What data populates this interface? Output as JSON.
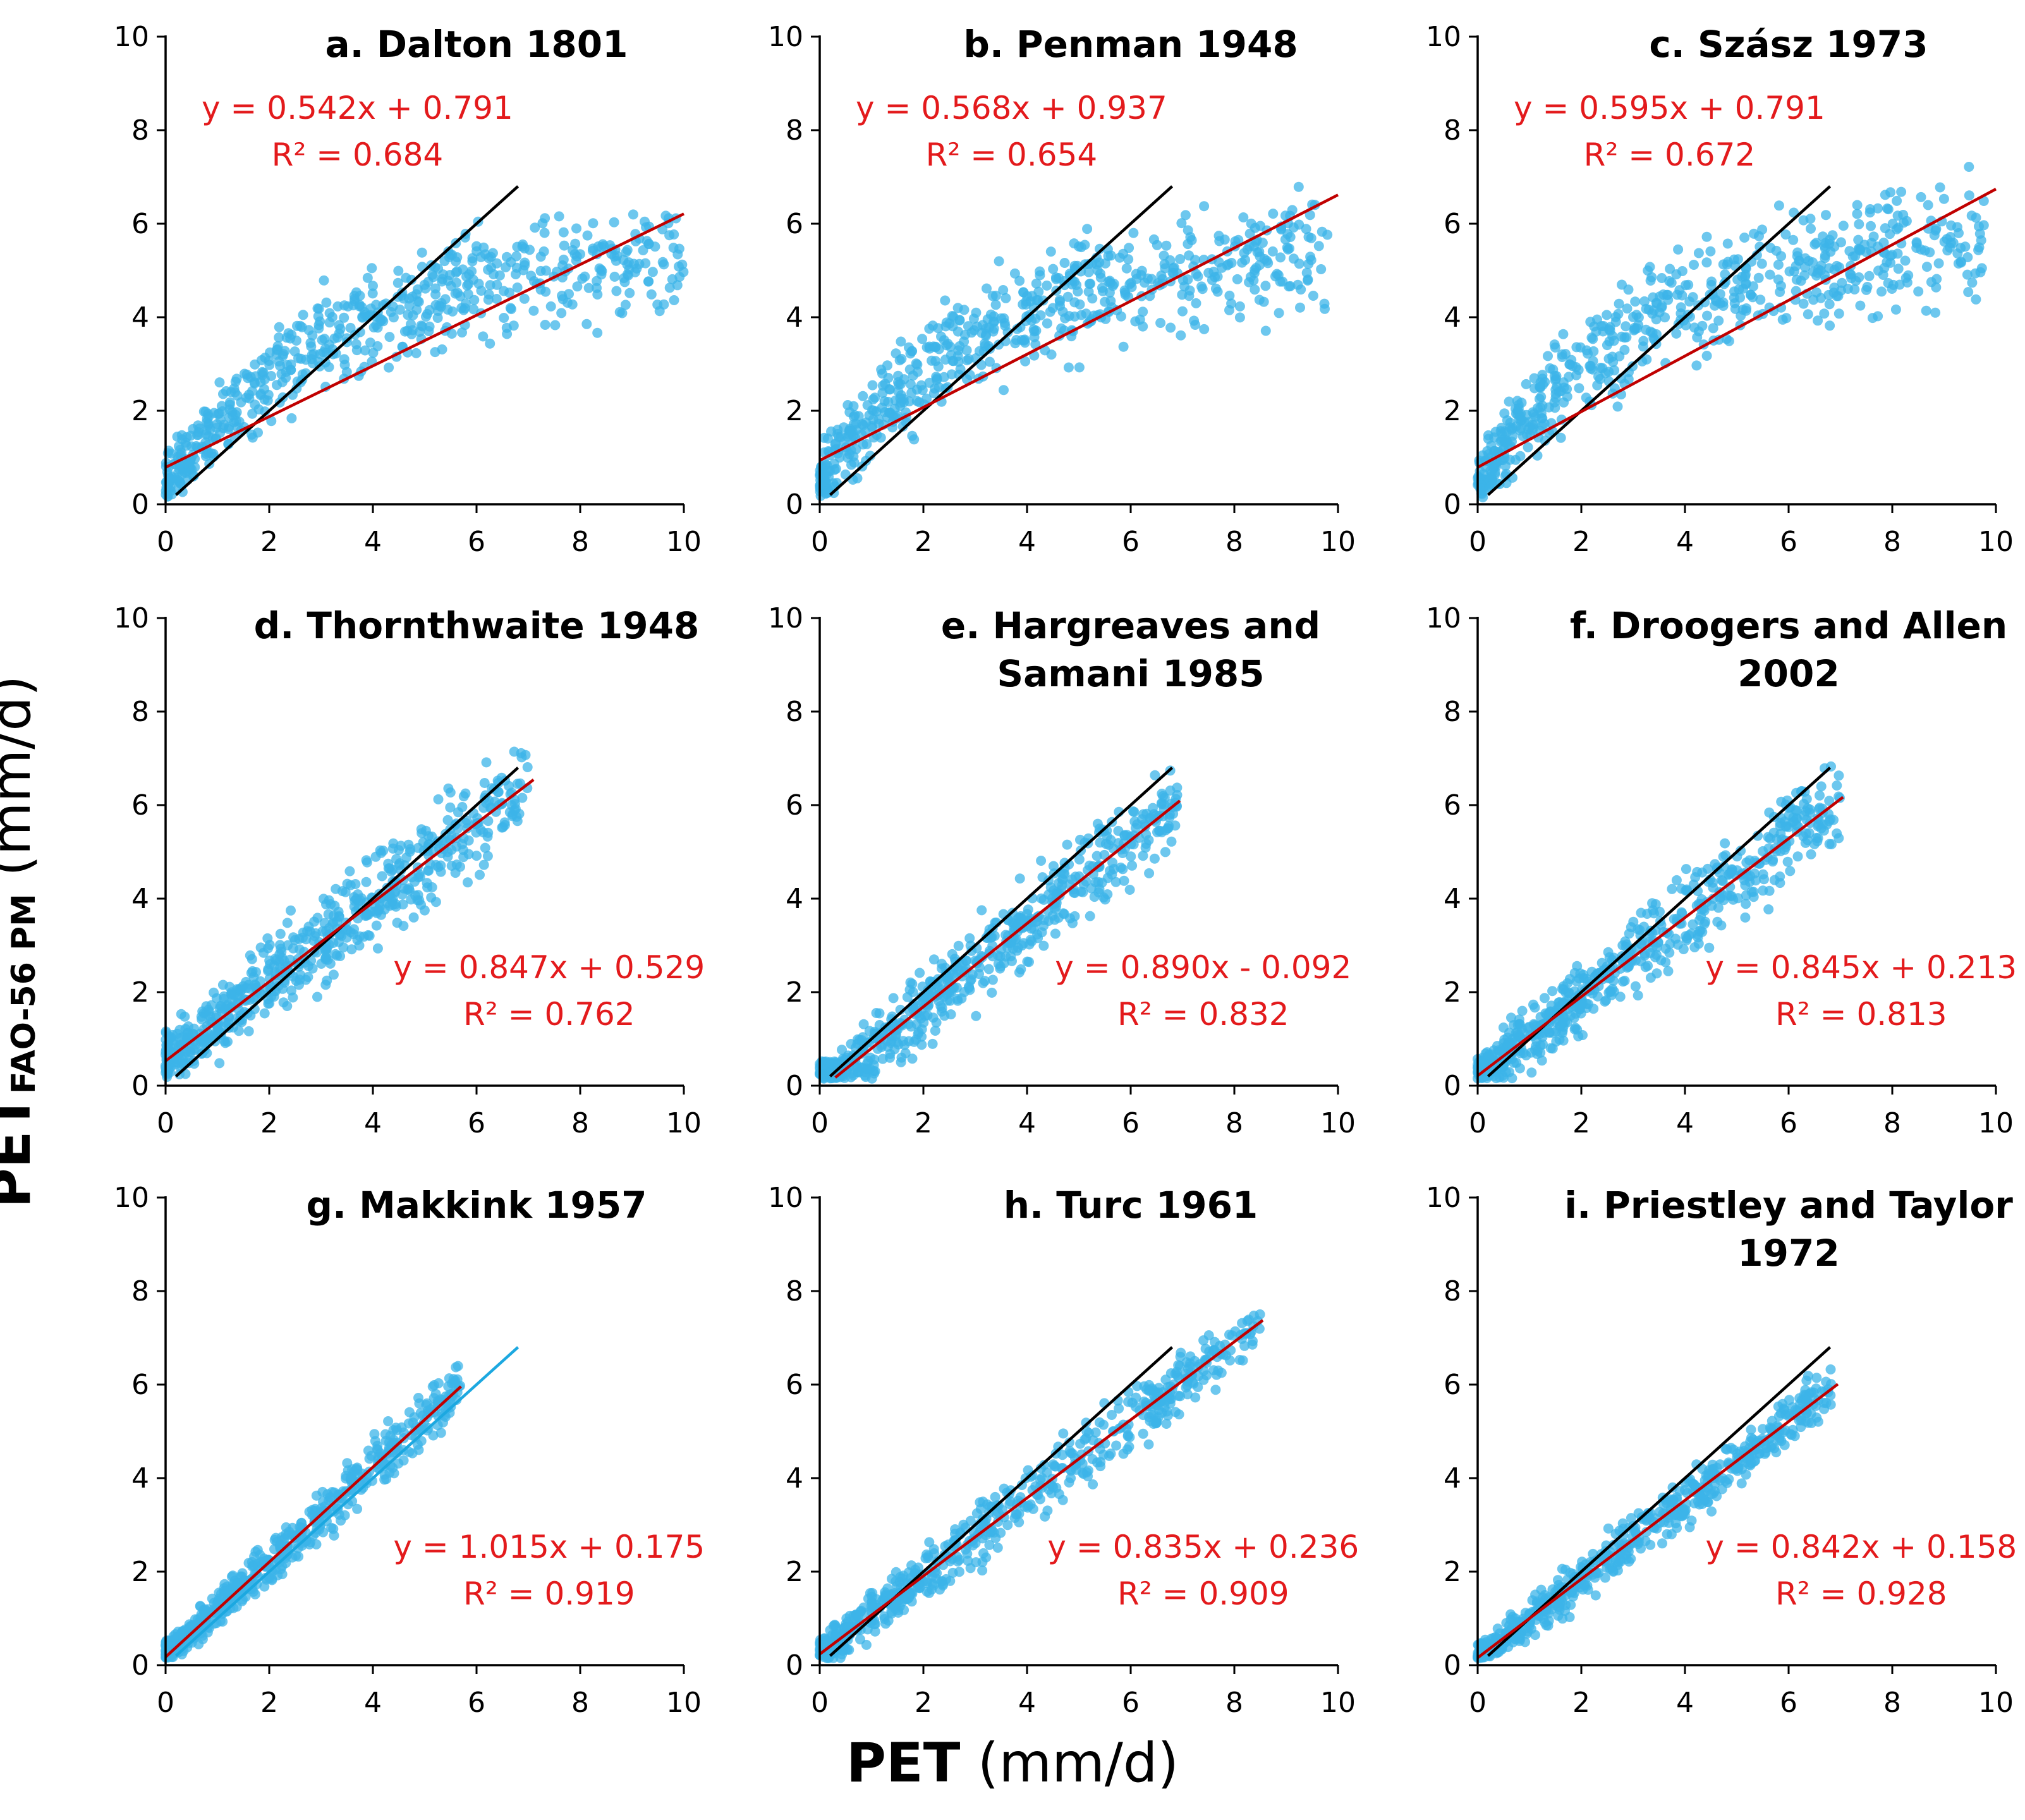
{
  "figure": {
    "ylabel_main": "PET",
    "ylabel_sub": "FAO-56 PM",
    "ylabel_units": " (mm/d)",
    "xlabel_main": "PET",
    "xlabel_units": " (mm/d)"
  },
  "colors": {
    "points": "#3cb4e8",
    "fit_line": "#c00000",
    "one_to_one": "#000000",
    "one_to_one_makkink": "#1ca8e0",
    "equation": "#e31a1c"
  },
  "chart_data": [
    {
      "type": "scatter",
      "title_lines": [
        "a. Dalton 1801"
      ],
      "equation": "y = 0.542x + 0.791",
      "r2": "R² = 0.684",
      "slope": 0.542,
      "intercept": 0.791,
      "fit_range": [
        0,
        10
      ],
      "one_to_one_range": [
        0.2,
        6.8
      ],
      "cloud": {
        "xmax": 10,
        "mode": "sat",
        "noise": 0.8,
        "amp": 5.0
      },
      "xlim": [
        0,
        10
      ],
      "ylim": [
        0,
        10
      ],
      "xticks": [
        "0",
        "2",
        "4",
        "6",
        "8",
        "10"
      ],
      "yticks": [
        "0",
        "2",
        "4",
        "6",
        "8",
        "10"
      ],
      "legend": "top-left"
    },
    {
      "type": "scatter",
      "title_lines": [
        "b. Penman 1948"
      ],
      "equation": "y = 0.568x + 0.937",
      "r2": "R² = 0.654",
      "slope": 0.568,
      "intercept": 0.937,
      "fit_range": [
        0,
        10
      ],
      "one_to_one_range": [
        0.2,
        6.8
      ],
      "cloud": {
        "xmax": 9.8,
        "mode": "sat",
        "noise": 0.85,
        "amp": 5.2
      },
      "xlim": [
        0,
        10
      ],
      "ylim": [
        0,
        10
      ],
      "xticks": [
        "0",
        "2",
        "4",
        "6",
        "8",
        "10"
      ],
      "yticks": [
        "0",
        "2",
        "4",
        "6",
        "8",
        "10"
      ],
      "legend": "top-left"
    },
    {
      "type": "scatter",
      "title_lines": [
        "c. Szász 1973"
      ],
      "equation": "y = 0.595x + 0.791",
      "r2": "R² = 0.672",
      "slope": 0.595,
      "intercept": 0.791,
      "fit_range": [
        0,
        10
      ],
      "one_to_one_range": [
        0.2,
        6.8
      ],
      "cloud": {
        "xmax": 9.8,
        "mode": "sat",
        "noise": 0.85,
        "amp": 5.4
      },
      "xlim": [
        0,
        10
      ],
      "ylim": [
        0,
        10
      ],
      "xticks": [
        "0",
        "2",
        "4",
        "6",
        "8",
        "10"
      ],
      "yticks": [
        "0",
        "2",
        "4",
        "6",
        "8",
        "10"
      ],
      "legend": "top-left"
    },
    {
      "type": "scatter",
      "title_lines": [
        "d. Thornthwaite 1948"
      ],
      "equation": "y = 0.847x + 0.529",
      "r2": "R² = 0.762",
      "slope": 0.847,
      "intercept": 0.529,
      "fit_range": [
        0,
        7.1
      ],
      "one_to_one_range": [
        0.2,
        6.8
      ],
      "cloud": {
        "xmax": 7.0,
        "mode": "lin",
        "noise": 0.7,
        "amp": 0
      },
      "xlim": [
        0,
        10
      ],
      "ylim": [
        0,
        10
      ],
      "xticks": [
        "0",
        "2",
        "4",
        "6",
        "8",
        "10"
      ],
      "yticks": [
        "0",
        "2",
        "4",
        "6",
        "8",
        "10"
      ],
      "legend": "bottom-right"
    },
    {
      "type": "scatter",
      "title_lines": [
        "e. Hargreaves and",
        "Samani 1985"
      ],
      "equation": "y = 0.890x - 0.092",
      "r2": "R² = 0.832",
      "slope": 0.89,
      "intercept": -0.092,
      "fit_range": [
        0.3,
        6.95
      ],
      "one_to_one_range": [
        0.2,
        6.8
      ],
      "cloud": {
        "xmax": 6.9,
        "mode": "lin",
        "noise": 0.62,
        "amp": 0
      },
      "xlim": [
        0,
        10
      ],
      "ylim": [
        0,
        10
      ],
      "xticks": [
        "0",
        "2",
        "4",
        "6",
        "8",
        "10"
      ],
      "yticks": [
        "0",
        "2",
        "4",
        "6",
        "8",
        "10"
      ],
      "legend": "bottom-right"
    },
    {
      "type": "scatter",
      "title_lines": [
        "f. Droogers and Allen",
        "2002"
      ],
      "equation": "y = 0.845x + 0.213",
      "r2": "R² = 0.813",
      "slope": 0.845,
      "intercept": 0.213,
      "fit_range": [
        0,
        7.05
      ],
      "one_to_one_range": [
        0.2,
        6.8
      ],
      "cloud": {
        "xmax": 7.0,
        "mode": "lin",
        "noise": 0.62,
        "amp": 0
      },
      "xlim": [
        0,
        10
      ],
      "ylim": [
        0,
        10
      ],
      "xticks": [
        "0",
        "2",
        "4",
        "6",
        "8",
        "10"
      ],
      "yticks": [
        "0",
        "2",
        "4",
        "6",
        "8",
        "10"
      ],
      "legend": "bottom-right"
    },
    {
      "type": "scatter",
      "title_lines": [
        "g. Makkink 1957"
      ],
      "equation": "y = 1.015x + 0.175",
      "r2": "R² = 0.919",
      "slope": 1.015,
      "intercept": 0.175,
      "fit_range": [
        0,
        5.7
      ],
      "one_to_one_range": [
        0.2,
        6.8
      ],
      "cloud": {
        "xmax": 5.7,
        "mode": "lin",
        "noise": 0.38,
        "amp": 0
      },
      "xlim": [
        0,
        10
      ],
      "ylim": [
        0,
        10
      ],
      "xticks": [
        "0",
        "2",
        "4",
        "6",
        "8",
        "10"
      ],
      "yticks": [
        "0",
        "2",
        "4",
        "6",
        "8",
        "10"
      ],
      "legend": "bottom-right"
    },
    {
      "type": "scatter",
      "title_lines": [
        "h. Turc 1961"
      ],
      "equation": "y = 0.835x + 0.236",
      "r2": "R² = 0.909",
      "slope": 0.835,
      "intercept": 0.236,
      "fit_range": [
        0,
        8.55
      ],
      "one_to_one_range": [
        0.2,
        6.8
      ],
      "cloud": {
        "xmax": 8.5,
        "mode": "lin",
        "noise": 0.45,
        "amp": 0
      },
      "xlim": [
        0,
        10
      ],
      "ylim": [
        0,
        10
      ],
      "xticks": [
        "0",
        "2",
        "4",
        "6",
        "8",
        "10"
      ],
      "yticks": [
        "0",
        "2",
        "4",
        "6",
        "8",
        "10"
      ],
      "legend": "bottom-right"
    },
    {
      "type": "scatter",
      "title_lines": [
        "i. Priestley and Taylor",
        "1972"
      ],
      "equation": "y = 0.842x + 0.158",
      "r2": "R² = 0.928",
      "slope": 0.842,
      "intercept": 0.158,
      "fit_range": [
        0,
        6.95
      ],
      "one_to_one_range": [
        0.2,
        6.8
      ],
      "cloud": {
        "xmax": 6.9,
        "mode": "lin",
        "noise": 0.38,
        "amp": 0
      },
      "xlim": [
        0,
        10
      ],
      "ylim": [
        0,
        10
      ],
      "xticks": [
        "0",
        "2",
        "4",
        "6",
        "8",
        "10"
      ],
      "yticks": [
        "0",
        "2",
        "4",
        "6",
        "8",
        "10"
      ],
      "legend": "bottom-right"
    }
  ]
}
